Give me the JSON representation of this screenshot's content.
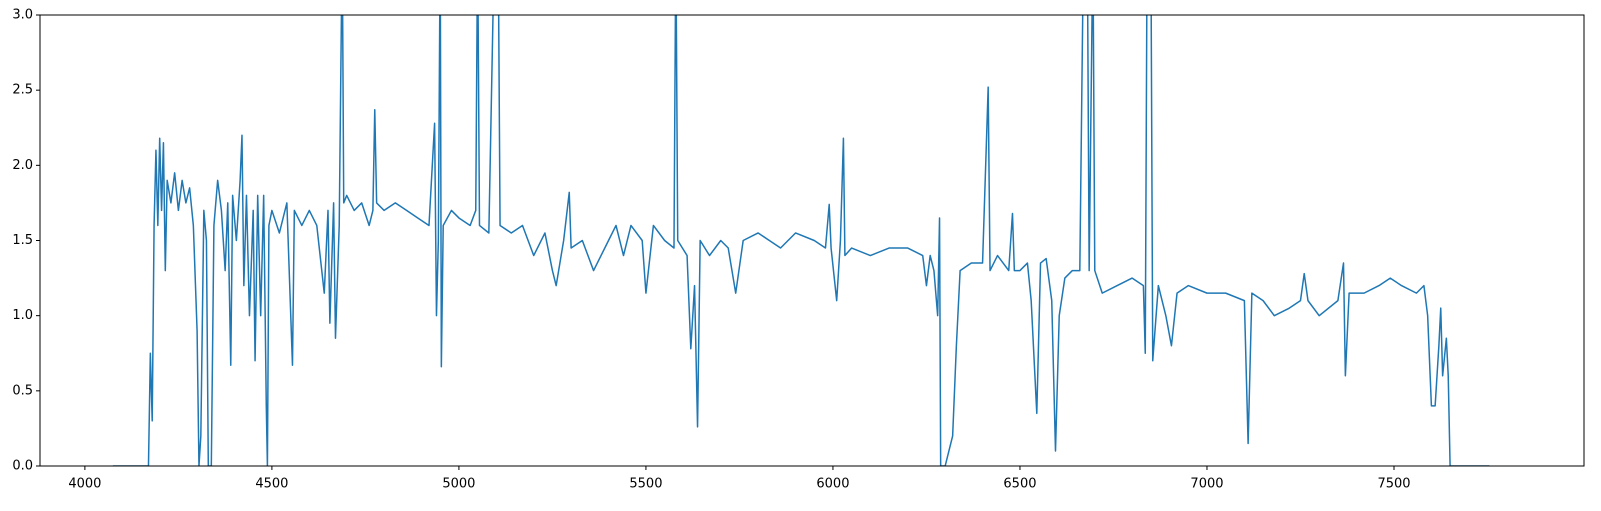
{
  "chart_data": {
    "type": "line",
    "color": "#1f77b4",
    "xlim": [
      3880,
      8008
    ],
    "ylim": [
      0,
      3
    ],
    "xticks": [
      4000,
      4500,
      5000,
      5500,
      6000,
      6500,
      7000,
      7500
    ],
    "yticks": [
      {
        "value": 0,
        "label": "0.0"
      },
      {
        "value": 0.5,
        "label": "0.5"
      },
      {
        "value": 1,
        "label": "1.0"
      },
      {
        "value": 1.5,
        "label": "1.5"
      },
      {
        "value": 2,
        "label": "2.0"
      },
      {
        "value": 2.5,
        "label": "2.5"
      },
      {
        "value": 3,
        "label": "3.0"
      }
    ],
    "x": [
      4075,
      4170,
      4175,
      4180,
      4185,
      4190,
      4195,
      4200,
      4205,
      4210,
      4215,
      4220,
      4230,
      4240,
      4250,
      4260,
      4270,
      4280,
      4290,
      4300,
      4305,
      4310,
      4318,
      4325,
      4330,
      4338,
      4345,
      4355,
      4365,
      4375,
      4382,
      4390,
      4395,
      4405,
      4415,
      4420,
      4425,
      4432,
      4440,
      4450,
      4455,
      4462,
      4470,
      4478,
      4485,
      4488,
      4492,
      4500,
      4520,
      4540,
      4555,
      4560,
      4580,
      4600,
      4620,
      4640,
      4650,
      4655,
      4665,
      4670,
      4680,
      4688,
      4692,
      4700,
      4720,
      4740,
      4760,
      4770,
      4775,
      4780,
      4800,
      4830,
      4860,
      4890,
      4920,
      4935,
      4940,
      4945,
      4950,
      4953,
      4958,
      4980,
      5000,
      5030,
      5045,
      5050,
      5055,
      5080,
      5095,
      5105,
      5110,
      5140,
      5170,
      5200,
      5230,
      5250,
      5260,
      5280,
      5295,
      5300,
      5330,
      5360,
      5400,
      5420,
      5440,
      5460,
      5490,
      5500,
      5520,
      5550,
      5575,
      5580,
      5585,
      5610,
      5620,
      5630,
      5638,
      5645,
      5670,
      5700,
      5720,
      5740,
      5760,
      5800,
      5830,
      5860,
      5900,
      5950,
      5980,
      5990,
      5995,
      6010,
      6020,
      6028,
      6032,
      6050,
      6100,
      6150,
      6200,
      6240,
      6250,
      6260,
      6270,
      6280,
      6285,
      6288,
      6300,
      6320,
      6330,
      6340,
      6370,
      6400,
      6415,
      6420,
      6440,
      6470,
      6480,
      6485,
      6500,
      6520,
      6530,
      6540,
      6545,
      6555,
      6570,
      6585,
      6595,
      6605,
      6620,
      6640,
      6660,
      6670,
      6680,
      6685,
      6695,
      6700,
      6720,
      6760,
      6800,
      6830,
      6835,
      6840,
      6850,
      6855,
      6870,
      6890,
      6905,
      6920,
      6950,
      7000,
      7050,
      7100,
      7110,
      7120,
      7150,
      7180,
      7220,
      7250,
      7260,
      7270,
      7300,
      7350,
      7365,
      7370,
      7380,
      7420,
      7460,
      7490,
      7520,
      7560,
      7580,
      7590,
      7600,
      7610,
      7620,
      7625,
      7630,
      7640,
      7645,
      7650,
      7755
    ],
    "values": [
      0,
      0,
      0.75,
      0.3,
      1.6,
      2.1,
      1.6,
      2.18,
      1.7,
      2.15,
      1.3,
      1.9,
      1.75,
      1.95,
      1.7,
      1.9,
      1.75,
      1.85,
      1.6,
      0.9,
      0,
      0.2,
      1.7,
      1.5,
      0,
      0,
      1.6,
      1.9,
      1.7,
      1.3,
      1.75,
      0.67,
      1.8,
      1.5,
      1.9,
      2.2,
      1.2,
      1.8,
      1.0,
      1.7,
      0.7,
      1.8,
      1.0,
      1.8,
      0.4,
      0,
      1.6,
      1.7,
      1.55,
      1.75,
      0.67,
      1.7,
      1.6,
      1.7,
      1.6,
      1.15,
      1.7,
      0.95,
      1.75,
      0.85,
      1.6,
      3.5,
      1.75,
      1.8,
      1.7,
      1.75,
      1.6,
      1.7,
      2.37,
      1.75,
      1.7,
      1.75,
      1.7,
      1.65,
      1.6,
      2.28,
      1.0,
      1.5,
      3.5,
      0.66,
      1.6,
      1.7,
      1.65,
      1.6,
      1.7,
      3.5,
      1.6,
      1.55,
      3.5,
      3.5,
      1.6,
      1.55,
      1.6,
      1.4,
      1.55,
      1.3,
      1.2,
      1.5,
      1.82,
      1.45,
      1.5,
      1.3,
      1.5,
      1.6,
      1.4,
      1.6,
      1.5,
      1.15,
      1.6,
      1.5,
      1.45,
      3.5,
      1.5,
      1.4,
      0.78,
      1.2,
      0.26,
      1.5,
      1.4,
      1.5,
      1.45,
      1.15,
      1.5,
      1.55,
      1.5,
      1.45,
      1.55,
      1.5,
      1.45,
      1.74,
      1.45,
      1.1,
      1.5,
      2.18,
      1.4,
      1.45,
      1.4,
      1.45,
      1.45,
      1.4,
      1.2,
      1.4,
      1.3,
      1.0,
      1.65,
      0,
      0,
      0.2,
      0.8,
      1.3,
      1.35,
      1.35,
      2.52,
      1.3,
      1.4,
      1.3,
      1.68,
      1.3,
      1.3,
      1.35,
      1.1,
      0.6,
      0.35,
      1.35,
      1.38,
      1.1,
      0.1,
      1.0,
      1.25,
      1.3,
      1.3,
      3.5,
      3.5,
      1.3,
      3.5,
      1.3,
      1.15,
      1.2,
      1.25,
      1.2,
      0.75,
      3.5,
      3.5,
      0.7,
      1.2,
      1.0,
      0.8,
      1.15,
      1.2,
      1.15,
      1.15,
      1.1,
      0.15,
      1.15,
      1.1,
      1.0,
      1.05,
      1.1,
      1.28,
      1.1,
      1.0,
      1.1,
      1.35,
      0.6,
      1.15,
      1.15,
      1.2,
      1.25,
      1.2,
      1.15,
      1.2,
      1.0,
      0.4,
      0.4,
      0.8,
      1.05,
      0.6,
      0.85,
      0.6,
      0,
      0
    ]
  }
}
